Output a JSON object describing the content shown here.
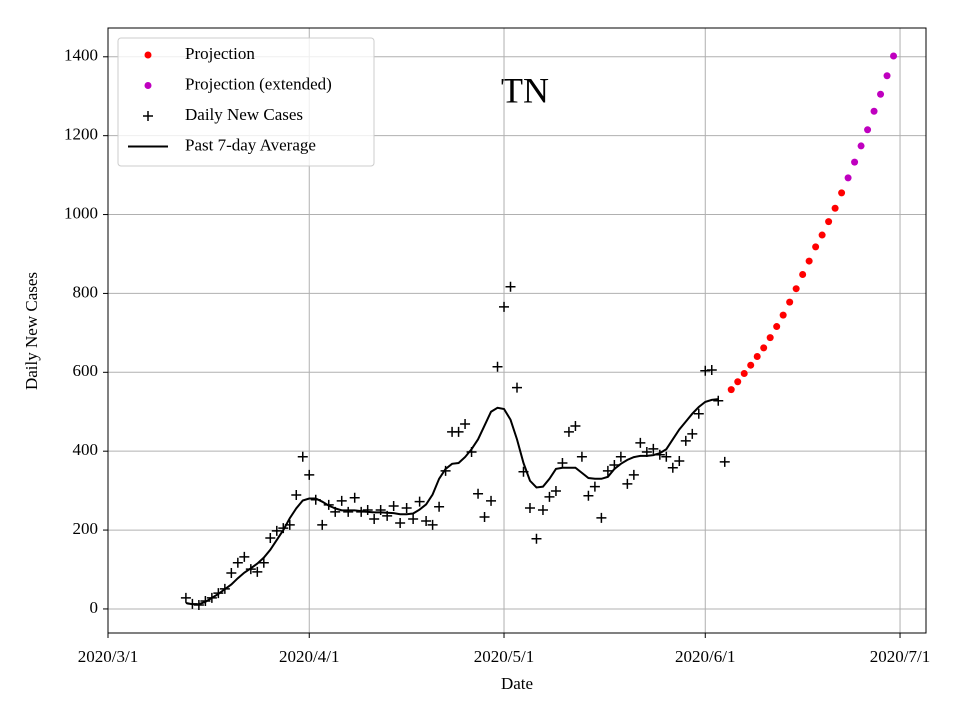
{
  "chart_data": {
    "type": "scatter",
    "title": "TN",
    "x_label": "Date",
    "y_label": "Daily New Cases",
    "xlim": [
      "2020/3/1",
      "2020/7/5"
    ],
    "xticks": [
      "2020/3/1",
      "2020/4/1",
      "2020/5/1",
      "2020/6/1",
      "2020/7/1"
    ],
    "ylim": [
      -61,
      1473
    ],
    "yticks": [
      0,
      200,
      400,
      600,
      800,
      1000,
      1200,
      1400
    ],
    "grid": true,
    "legend": "upper left",
    "series": [
      {
        "name": "Projection",
        "color": "#ff0000",
        "marker": "dot",
        "x": [
          "2020/6/5",
          "2020/6/6",
          "2020/6/7",
          "2020/6/8",
          "2020/6/9",
          "2020/6/10",
          "2020/6/11",
          "2020/6/12",
          "2020/6/13",
          "2020/6/14",
          "2020/6/15",
          "2020/6/16",
          "2020/6/17",
          "2020/6/18",
          "2020/6/19",
          "2020/6/20",
          "2020/6/21",
          "2020/6/22"
        ],
        "values": [
          556,
          576,
          597,
          618,
          640,
          662,
          688,
          716,
          745,
          778,
          812,
          848,
          882,
          918,
          948,
          982,
          1016,
          1055
        ]
      },
      {
        "name": "Projection (extended)",
        "color": "#bf00bf",
        "marker": "dot",
        "x": [
          "2020/6/23",
          "2020/6/24",
          "2020/6/25",
          "2020/6/26",
          "2020/6/27",
          "2020/6/28",
          "2020/6/29",
          "2020/6/30"
        ],
        "values": [
          1093,
          1133,
          1174,
          1215,
          1262,
          1305,
          1352,
          1402
        ]
      },
      {
        "name": "Daily New Cases",
        "color": "#000000",
        "marker": "plus",
        "x": [
          "2020/3/13",
          "2020/3/14",
          "2020/3/15",
          "2020/3/16",
          "2020/3/17",
          "2020/3/18",
          "2020/3/19",
          "2020/3/20",
          "2020/3/21",
          "2020/3/22",
          "2020/3/23",
          "2020/3/24",
          "2020/3/25",
          "2020/3/26",
          "2020/3/27",
          "2020/3/28",
          "2020/3/29",
          "2020/3/30",
          "2020/3/31",
          "2020/4/1",
          "2020/4/2",
          "2020/4/3",
          "2020/4/4",
          "2020/4/5",
          "2020/4/6",
          "2020/4/7",
          "2020/4/8",
          "2020/4/9",
          "2020/4/10",
          "2020/4/11",
          "2020/4/12",
          "2020/4/13",
          "2020/4/14",
          "2020/4/15",
          "2020/4/16",
          "2020/4/17",
          "2020/4/18",
          "2020/4/19",
          "2020/4/20",
          "2020/4/21",
          "2020/4/22",
          "2020/4/23",
          "2020/4/24",
          "2020/4/25",
          "2020/4/26",
          "2020/4/27",
          "2020/4/28",
          "2020/4/29",
          "2020/4/30",
          "2020/5/1",
          "2020/5/2",
          "2020/5/3",
          "2020/5/4",
          "2020/5/5",
          "2020/5/6",
          "2020/5/7",
          "2020/5/8",
          "2020/5/9",
          "2020/5/10",
          "2020/5/11",
          "2020/5/12",
          "2020/5/13",
          "2020/5/14",
          "2020/5/15",
          "2020/5/16",
          "2020/5/17",
          "2020/5/18",
          "2020/5/19",
          "2020/5/20",
          "2020/5/21",
          "2020/5/22",
          "2020/5/23",
          "2020/5/24",
          "2020/5/25",
          "2020/5/26",
          "2020/5/27",
          "2020/5/28",
          "2020/5/29",
          "2020/5/30",
          "2020/5/31",
          "2020/6/1",
          "2020/6/2",
          "2020/6/3",
          "2020/6/4"
        ],
        "values": [
          28,
          13,
          10,
          20,
          28,
          40,
          51,
          91,
          117,
          132,
          101,
          94,
          117,
          180,
          198,
          205,
          213,
          289,
          386,
          340,
          277,
          213,
          264,
          246,
          274,
          246,
          282,
          246,
          251,
          228,
          251,
          236,
          261,
          218,
          256,
          228,
          272,
          223,
          213,
          259,
          350,
          449,
          449,
          469,
          398,
          292,
          233,
          274,
          614,
          766,
          817,
          561,
          348,
          256,
          178,
          251,
          284,
          299,
          370,
          449,
          464,
          386,
          287,
          310,
          231,
          350,
          365,
          386,
          317,
          340,
          421,
          398,
          406,
          391,
          386,
          358,
          375,
          426,
          444,
          495,
          604,
          606,
          528,
          373
        ]
      },
      {
        "name": "Past 7-day Average",
        "color": "#000000",
        "marker": "line",
        "x": [
          "2020/3/13",
          "2020/3/14",
          "2020/3/15",
          "2020/3/16",
          "2020/3/17",
          "2020/3/18",
          "2020/3/19",
          "2020/3/20",
          "2020/3/21",
          "2020/3/22",
          "2020/3/23",
          "2020/3/24",
          "2020/3/25",
          "2020/3/26",
          "2020/3/27",
          "2020/3/28",
          "2020/3/29",
          "2020/3/30",
          "2020/3/31",
          "2020/4/1",
          "2020/4/2",
          "2020/4/3",
          "2020/4/4",
          "2020/4/5",
          "2020/4/6",
          "2020/4/7",
          "2020/4/8",
          "2020/4/9",
          "2020/4/10",
          "2020/4/11",
          "2020/4/12",
          "2020/4/13",
          "2020/4/14",
          "2020/4/15",
          "2020/4/16",
          "2020/4/17",
          "2020/4/18",
          "2020/4/19",
          "2020/4/20",
          "2020/4/21",
          "2020/4/22",
          "2020/4/23",
          "2020/4/24",
          "2020/4/25",
          "2020/4/26",
          "2020/4/27",
          "2020/4/28",
          "2020/4/29",
          "2020/4/30",
          "2020/5/1",
          "2020/5/2",
          "2020/5/3",
          "2020/5/4",
          "2020/5/5",
          "2020/5/6",
          "2020/5/7",
          "2020/5/8",
          "2020/5/9",
          "2020/5/10",
          "2020/5/11",
          "2020/5/12",
          "2020/5/13",
          "2020/5/14",
          "2020/5/15",
          "2020/5/16",
          "2020/5/17",
          "2020/5/18",
          "2020/5/19",
          "2020/5/20",
          "2020/5/21",
          "2020/5/22",
          "2020/5/23",
          "2020/5/24",
          "2020/5/25",
          "2020/5/26",
          "2020/5/27",
          "2020/5/28",
          "2020/5/29",
          "2020/5/30",
          "2020/5/31",
          "2020/6/1",
          "2020/6/2",
          "2020/6/3"
        ],
        "values": [
          15,
          12,
          12,
          18,
          28,
          38,
          50,
          62,
          78,
          92,
          103,
          115,
          130,
          150,
          175,
          200,
          230,
          255,
          275,
          280,
          280,
          272,
          262,
          255,
          250,
          250,
          250,
          248,
          246,
          245,
          245,
          244,
          243,
          240,
          240,
          242,
          252,
          265,
          290,
          330,
          355,
          368,
          370,
          385,
          405,
          430,
          465,
          500,
          510,
          507,
          480,
          430,
          370,
          325,
          308,
          310,
          330,
          355,
          358,
          358,
          358,
          345,
          332,
          330,
          330,
          335,
          355,
          368,
          378,
          385,
          388,
          388,
          390,
          395,
          405,
          430,
          455,
          475,
          495,
          512,
          525,
          530,
          532
        ]
      }
    ]
  }
}
